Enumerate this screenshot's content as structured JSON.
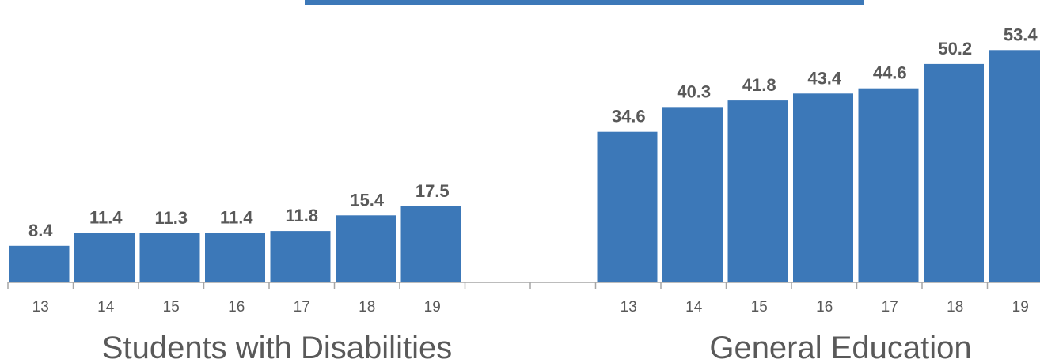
{
  "chart_data": {
    "type": "bar",
    "bar_color": "#3C78B8",
    "header_bar_color": "#3C78B8",
    "axis_color": "#A6A6A6",
    "text_color": "#595959",
    "grid": false,
    "ylim": [
      0,
      60
    ],
    "groups": [
      {
        "name": "Students with Disabilities",
        "categories": [
          "13",
          "14",
          "15",
          "16",
          "17",
          "18",
          "19"
        ],
        "values": [
          8.4,
          11.4,
          11.3,
          11.4,
          11.8,
          15.4,
          17.5
        ]
      },
      {
        "name": "General Education",
        "categories": [
          "13",
          "14",
          "15",
          "16",
          "17",
          "18",
          "19"
        ],
        "values": [
          34.6,
          40.3,
          41.8,
          43.4,
          44.6,
          50.2,
          53.4
        ]
      }
    ]
  }
}
